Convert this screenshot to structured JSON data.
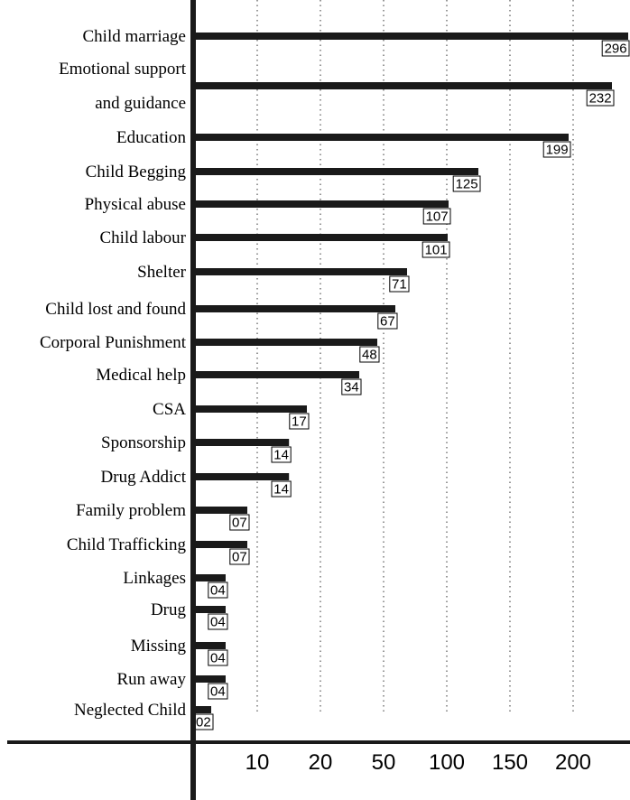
{
  "chart_data": {
    "type": "bar",
    "orientation": "horizontal",
    "title": "",
    "xlabel": "",
    "ylabel": "",
    "grid": "vertical dotted",
    "legend": "none",
    "x_ticks": [
      "10",
      "20",
      "50",
      "100",
      "150",
      "200"
    ],
    "categories": [
      [
        "Child marriage"
      ],
      [
        "Emotional support",
        "and guidance"
      ],
      [
        "Education"
      ],
      [
        "Child Begging"
      ],
      [
        "Physical abuse"
      ],
      [
        "Child labour"
      ],
      [
        "Shelter"
      ],
      [
        "Child lost and found"
      ],
      [
        "Corporal Punishment"
      ],
      [
        "Medical help"
      ],
      [
        "CSA"
      ],
      [
        "Sponsorship"
      ],
      [
        "Drug Addict"
      ],
      [
        "Family problem"
      ],
      [
        "Child Trafficking"
      ],
      [
        "Linkages"
      ],
      [
        "Drug"
      ],
      [
        "Missing"
      ],
      [
        "Run away"
      ],
      [
        "Neglected Child"
      ]
    ],
    "values": [
      296,
      232,
      199,
      125,
      107,
      101,
      71,
      67,
      48,
      34,
      17,
      14,
      14,
      7,
      7,
      4,
      4,
      4,
      4,
      2
    ],
    "value_labels": [
      "296",
      "232",
      "199",
      "125",
      "107",
      "101",
      "71",
      "67",
      "48",
      "34",
      "17",
      "14",
      "14",
      "07",
      "07",
      "04",
      "04",
      "04",
      "04",
      "02"
    ],
    "colors": {
      "bar": "#1a1a1a",
      "axis": "#1a1a1a",
      "grid": "#555555",
      "text": "#000000"
    }
  }
}
